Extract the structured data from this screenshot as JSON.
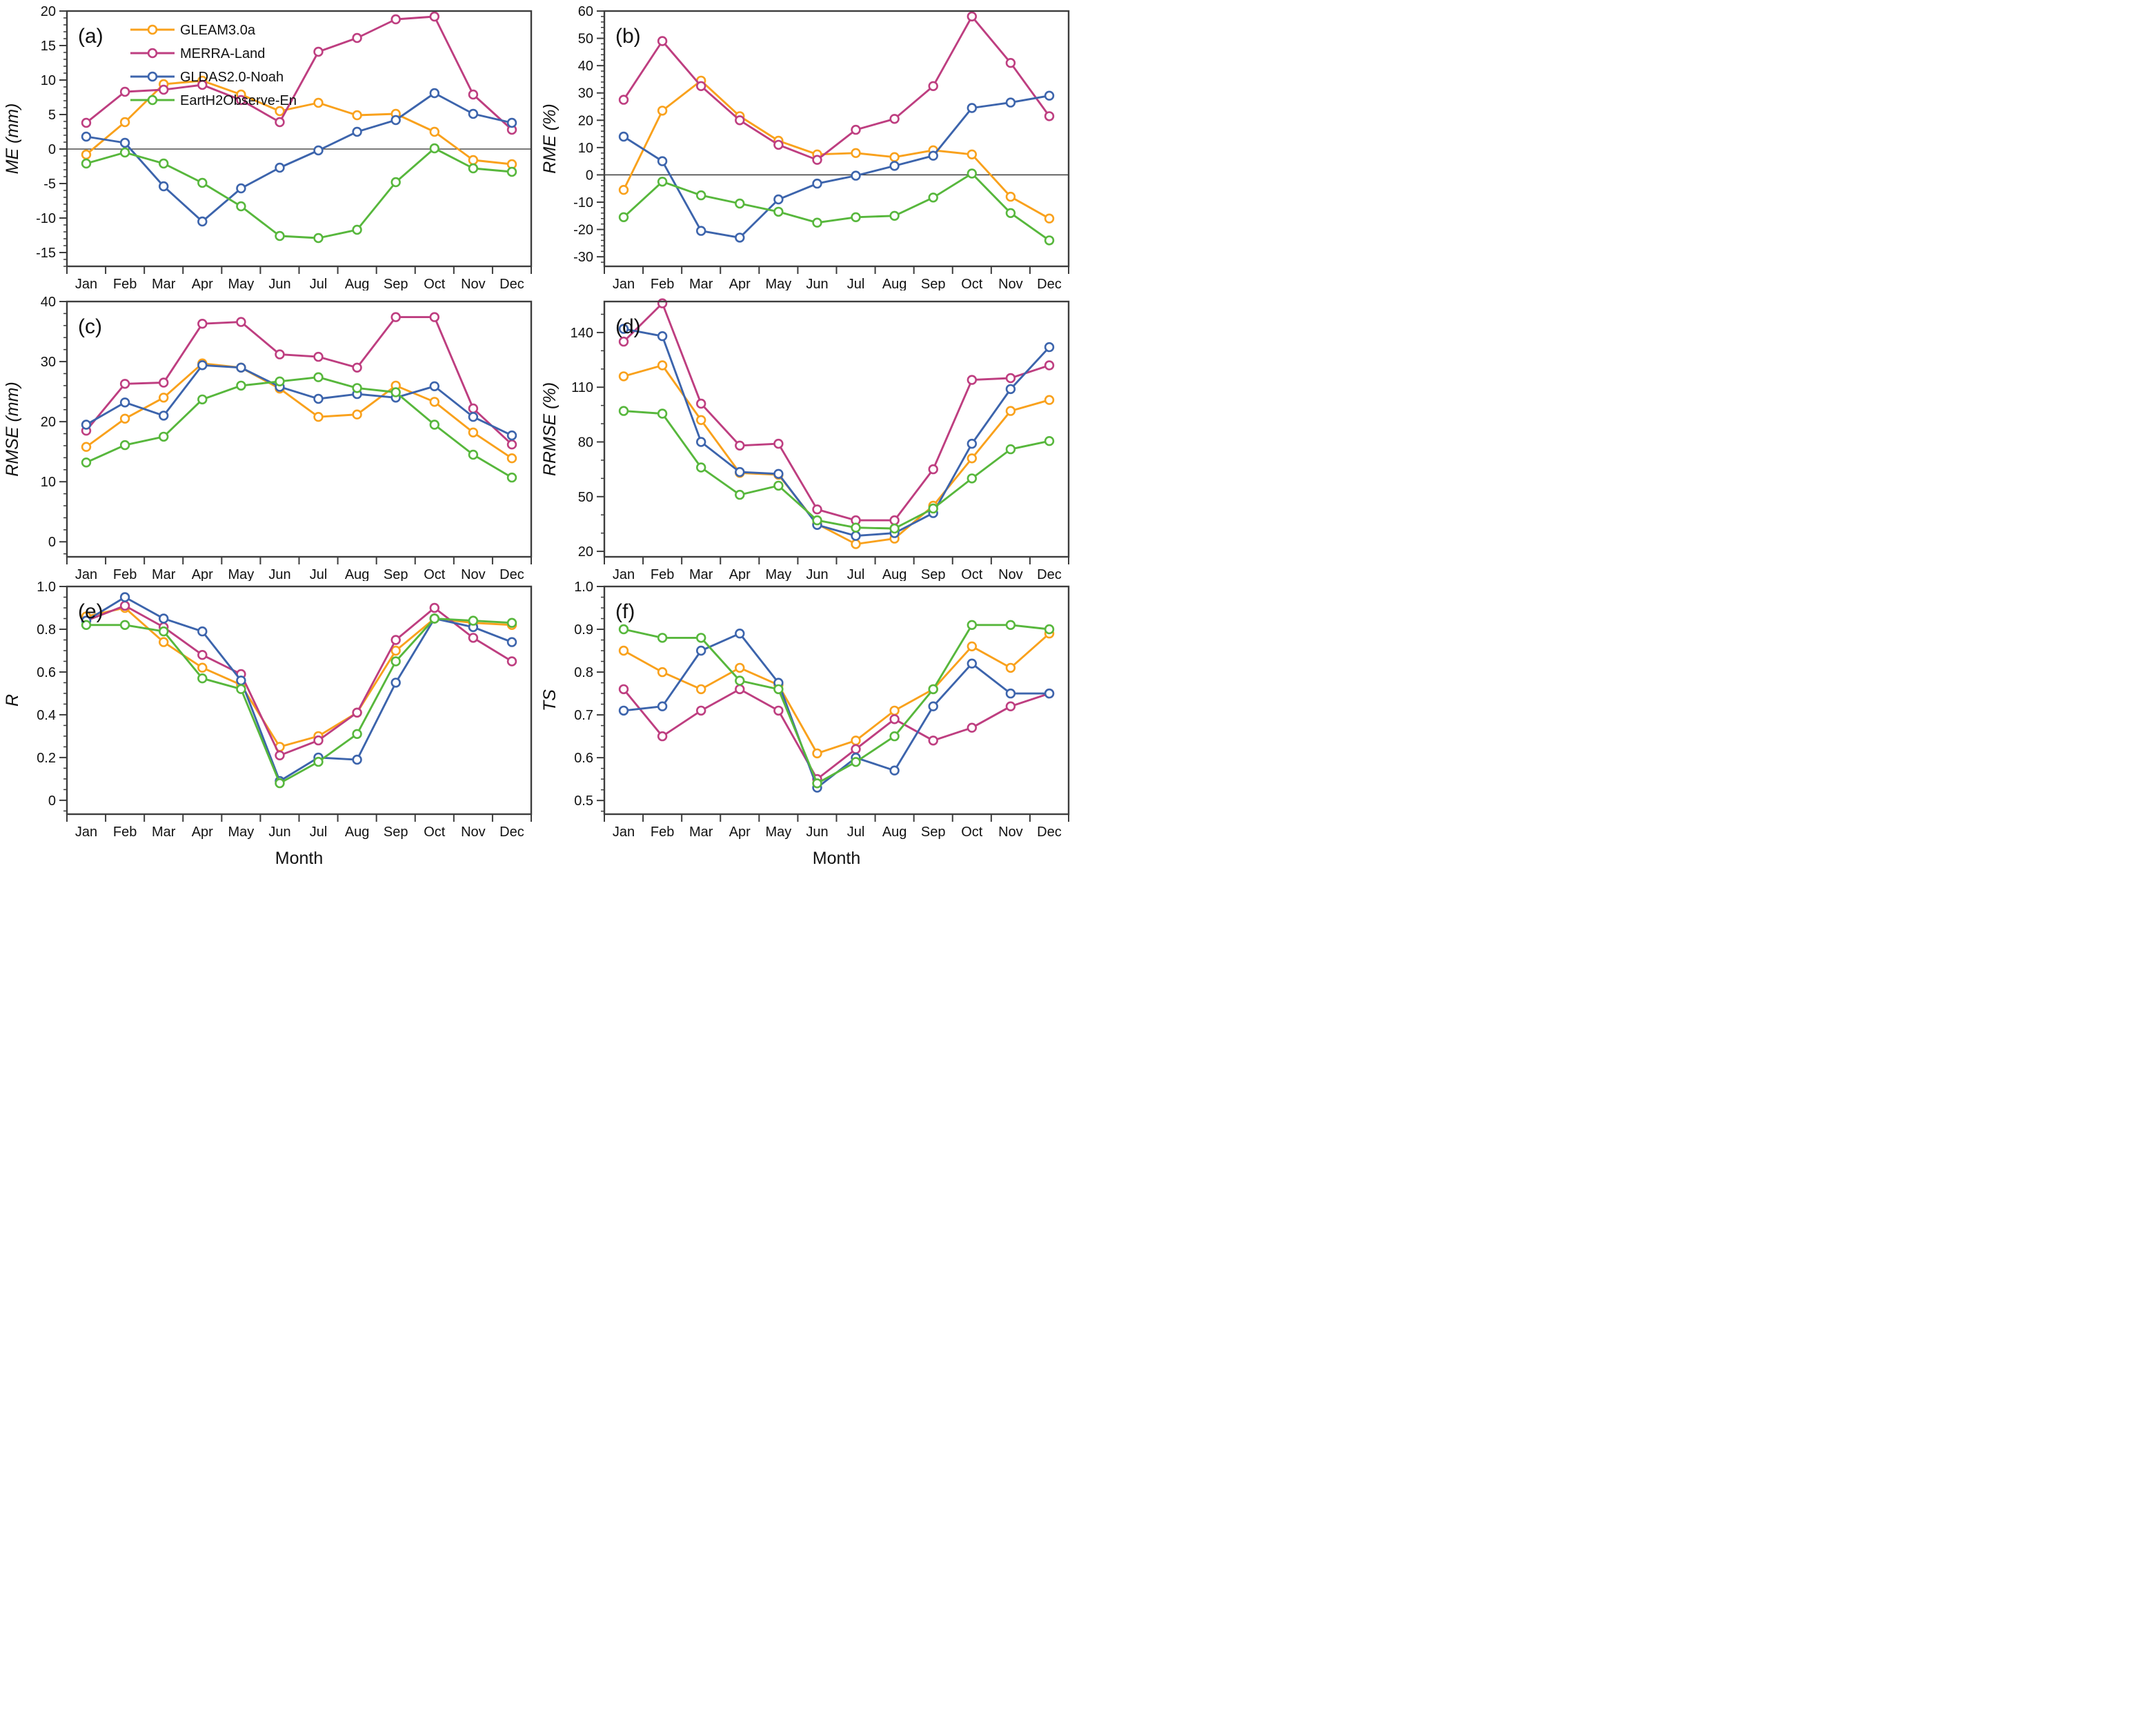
{
  "figure": {
    "months": [
      "Jan",
      "Feb",
      "Mar",
      "Apr",
      "May",
      "Jun",
      "Jul",
      "Aug",
      "Sep",
      "Oct",
      "Nov",
      "Dec"
    ],
    "xlabel": "Month",
    "axis_color": "#3d3d3d",
    "series_meta": [
      {
        "name": "GLEAM3.0a",
        "color": "#F9A11C"
      },
      {
        "name": "MERRA-Land",
        "color": "#BE3E80"
      },
      {
        "name": "GLDAS2.0-Noah",
        "color": "#3C64AC"
      },
      {
        "name": "EartH2Observe-En",
        "color": "#57B73C"
      }
    ]
  },
  "chart_data": [
    {
      "type": "line",
      "panel_label": "(a)",
      "ylabel": "ME (mm)",
      "ylim": [
        -17,
        20
      ],
      "yticks": [
        20,
        15,
        10,
        5,
        0,
        -5,
        -10,
        -15
      ],
      "ytick_labels": [
        "20",
        "15",
        "10",
        "5",
        "0",
        "-5",
        "-10",
        "-15"
      ],
      "ytick_minor": 1,
      "zero_line": true,
      "show_legend": true,
      "show_xlabel": false,
      "series": [
        {
          "name": "GLEAM3.0a",
          "values": [
            -0.8,
            3.9,
            9.4,
            9.9,
            7.9,
            5.5,
            6.7,
            4.9,
            5.1,
            2.5,
            -1.6,
            -2.2
          ]
        },
        {
          "name": "MERRA-Land",
          "values": [
            3.8,
            8.3,
            8.6,
            9.3,
            7.1,
            3.9,
            14.1,
            16.1,
            18.8,
            19.2,
            7.9,
            2.8
          ]
        },
        {
          "name": "GLDAS2.0-Noah",
          "values": [
            1.8,
            0.9,
            -5.4,
            -10.5,
            -5.7,
            -2.7,
            -0.2,
            2.5,
            4.2,
            8.1,
            5.1,
            3.8
          ]
        },
        {
          "name": "EartH2Observe-En",
          "values": [
            -2.1,
            -0.5,
            -2.1,
            -4.9,
            -8.3,
            -12.6,
            -12.9,
            -11.7,
            -4.8,
            0.1,
            -2.8,
            -3.3
          ]
        }
      ]
    },
    {
      "type": "line",
      "panel_label": "(b)",
      "ylabel": "RME (%)",
      "ylim": [
        -33.5,
        60
      ],
      "yticks": [
        60,
        50,
        40,
        30,
        20,
        10,
        0,
        -10,
        -20,
        -30
      ],
      "ytick_labels": [
        "60",
        "50",
        "40",
        "30",
        "20",
        "10",
        "0",
        "-10",
        "-20",
        "-30"
      ],
      "ytick_minor": 2,
      "zero_line": true,
      "show_legend": false,
      "show_xlabel": false,
      "series": [
        {
          "name": "GLEAM3.0a",
          "values": [
            -5.5,
            23.5,
            34.5,
            21.5,
            12.5,
            7.5,
            8,
            6.5,
            9,
            7.5,
            -8,
            -16
          ]
        },
        {
          "name": "MERRA-Land",
          "values": [
            27.5,
            49,
            32.5,
            20,
            11,
            5.5,
            16.5,
            20.5,
            32.5,
            58,
            41,
            21.5
          ]
        },
        {
          "name": "GLDAS2.0-Noah",
          "values": [
            14,
            5,
            -20.5,
            -23,
            -9,
            -3.2,
            -0.3,
            3.3,
            7,
            24.5,
            26.5,
            29
          ]
        },
        {
          "name": "EartH2Observe-En",
          "values": [
            -15.5,
            -2.5,
            -7.5,
            -10.5,
            -13.5,
            -17.5,
            -15.5,
            -15,
            -8.3,
            0.5,
            -14,
            -24
          ]
        }
      ]
    },
    {
      "type": "line",
      "panel_label": "(c)",
      "ylabel": "RMSE (mm)",
      "ylim": [
        -2.5,
        40
      ],
      "yticks": [
        40,
        30,
        20,
        10,
        0
      ],
      "ytick_labels": [
        "40",
        "30",
        "20",
        "10",
        "0"
      ],
      "ytick_minor": 2,
      "zero_line": false,
      "show_legend": false,
      "show_xlabel": false,
      "series": [
        {
          "name": "GLEAM3.0a",
          "values": [
            15.8,
            20.5,
            24.0,
            29.7,
            29.0,
            25.5,
            20.8,
            21.2,
            26.0,
            23.3,
            18.2,
            13.9
          ]
        },
        {
          "name": "MERRA-Land",
          "values": [
            18.5,
            26.3,
            26.5,
            36.3,
            36.6,
            31.2,
            30.8,
            29.0,
            37.4,
            37.4,
            22.2,
            16.2
          ]
        },
        {
          "name": "GLDAS2.0-Noah",
          "values": [
            19.5,
            23.2,
            21.0,
            29.4,
            29.0,
            25.8,
            23.8,
            24.6,
            24.0,
            25.9,
            20.8,
            17.7
          ]
        },
        {
          "name": "EartH2Observe-En",
          "values": [
            13.2,
            16.1,
            17.5,
            23.7,
            26.0,
            26.7,
            27.4,
            25.6,
            24.9,
            19.5,
            14.5,
            10.7
          ]
        }
      ]
    },
    {
      "type": "line",
      "panel_label": "(d)",
      "ylabel": "RRMSE (%)",
      "ylim": [
        17,
        157
      ],
      "yticks": [
        140,
        110,
        80,
        50,
        20
      ],
      "ytick_labels": [
        "140",
        "110",
        "80",
        "50",
        "20"
      ],
      "ytick_minor": 10,
      "zero_line": false,
      "show_legend": false,
      "show_xlabel": false,
      "series": [
        {
          "name": "GLEAM3.0a",
          "values": [
            116,
            122,
            92,
            63,
            62,
            35,
            24,
            27,
            45,
            71,
            97,
            103
          ]
        },
        {
          "name": "MERRA-Land",
          "values": [
            135,
            156,
            101,
            78,
            79,
            43,
            37,
            37,
            65,
            114,
            115,
            122
          ]
        },
        {
          "name": "GLDAS2.0-Noah",
          "values": [
            142,
            138,
            80,
            63.5,
            62.5,
            34.5,
            28.5,
            30,
            41,
            79,
            109,
            132
          ]
        },
        {
          "name": "EartH2Observe-En",
          "values": [
            97,
            95.5,
            66,
            51,
            56,
            37,
            33,
            32.5,
            43.5,
            60,
            76,
            80.5
          ]
        }
      ]
    },
    {
      "type": "line",
      "panel_label": "(e)",
      "ylabel": "R",
      "ylim": [
        -0.065,
        1.0
      ],
      "yticks": [
        1.0,
        0.8,
        0.6,
        0.4,
        0.2,
        0
      ],
      "ytick_labels": [
        "1.0",
        "0.8",
        "0.6",
        "0.4",
        "0.2",
        "0"
      ],
      "ytick_minor": 0.05,
      "zero_line": false,
      "show_legend": false,
      "show_xlabel": true,
      "series": [
        {
          "name": "GLEAM3.0a",
          "values": [
            0.86,
            0.9,
            0.74,
            0.62,
            0.54,
            0.25,
            0.3,
            0.41,
            0.7,
            0.85,
            0.83,
            0.82
          ]
        },
        {
          "name": "MERRA-Land",
          "values": [
            0.84,
            0.91,
            0.81,
            0.68,
            0.59,
            0.21,
            0.28,
            0.41,
            0.75,
            0.9,
            0.76,
            0.65
          ]
        },
        {
          "name": "GLDAS2.0-Noah",
          "values": [
            0.84,
            0.95,
            0.85,
            0.79,
            0.56,
            0.09,
            0.2,
            0.19,
            0.55,
            0.85,
            0.81,
            0.74
          ]
        },
        {
          "name": "EartH2Observe-En",
          "values": [
            0.82,
            0.82,
            0.79,
            0.57,
            0.52,
            0.08,
            0.18,
            0.31,
            0.65,
            0.85,
            0.84,
            0.83
          ]
        }
      ]
    },
    {
      "type": "line",
      "panel_label": "(f)",
      "ylabel": "TS",
      "ylim": [
        0.468,
        1.0
      ],
      "yticks": [
        1.0,
        0.9,
        0.8,
        0.7,
        0.6,
        0.5
      ],
      "ytick_labels": [
        "1.0",
        "0.9",
        "0.8",
        "0.7",
        "0.6",
        "0.5"
      ],
      "ytick_minor": 0.025,
      "zero_line": false,
      "show_legend": false,
      "show_xlabel": true,
      "series": [
        {
          "name": "GLEAM3.0a",
          "values": [
            0.85,
            0.8,
            0.76,
            0.81,
            0.77,
            0.61,
            0.64,
            0.71,
            0.76,
            0.86,
            0.81,
            0.89
          ]
        },
        {
          "name": "MERRA-Land",
          "values": [
            0.76,
            0.65,
            0.71,
            0.76,
            0.71,
            0.55,
            0.62,
            0.69,
            0.64,
            0.67,
            0.72,
            0.75
          ]
        },
        {
          "name": "GLDAS2.0-Noah",
          "values": [
            0.71,
            0.72,
            0.85,
            0.89,
            0.775,
            0.53,
            0.6,
            0.57,
            0.72,
            0.82,
            0.75,
            0.75
          ]
        },
        {
          "name": "EartH2Observe-En",
          "values": [
            0.9,
            0.88,
            0.88,
            0.78,
            0.76,
            0.54,
            0.59,
            0.65,
            0.76,
            0.91,
            0.91,
            0.9
          ]
        }
      ]
    }
  ]
}
